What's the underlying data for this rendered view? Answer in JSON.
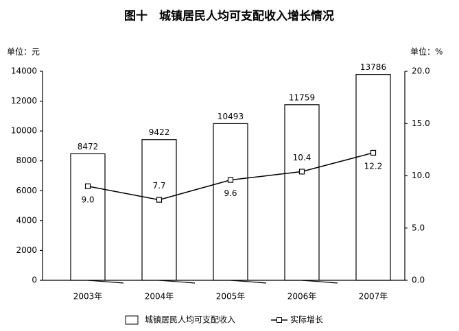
{
  "chart_data": {
    "type": "bar",
    "title": "图十　城镇居民人均可支配收入增长情况",
    "y_unit": "单位：元",
    "y2_unit": "单位：%",
    "categories": [
      "2003年",
      "2004年",
      "2005年",
      "2006年",
      "2007年"
    ],
    "series": [
      {
        "name": "城镇居民人均可支配收入",
        "type": "bar",
        "color": "#ffffff",
        "values": [
          8472,
          9422,
          10493,
          11759,
          13786
        ]
      },
      {
        "name": "实际增长",
        "type": "line",
        "axis": "y2",
        "color": "#000000",
        "values": [
          9.0,
          7.7,
          9.6,
          10.4,
          12.2
        ],
        "value_labels": [
          "9.0",
          "7.7",
          "9.6",
          "10.4",
          "12.2"
        ]
      }
    ],
    "ylim": [
      0,
      14000
    ],
    "yticks": [
      0,
      2000,
      4000,
      6000,
      8000,
      10000,
      12000,
      14000
    ],
    "y2lim": [
      0,
      20
    ],
    "y2ticks": [
      {
        "value": 0,
        "label": "0.0"
      },
      {
        "value": 5,
        "label": "5.0"
      },
      {
        "value": 10,
        "label": "10.0"
      },
      {
        "value": 15,
        "label": "15.0"
      },
      {
        "value": 20,
        "label": "20.0"
      }
    ],
    "grid": false
  }
}
